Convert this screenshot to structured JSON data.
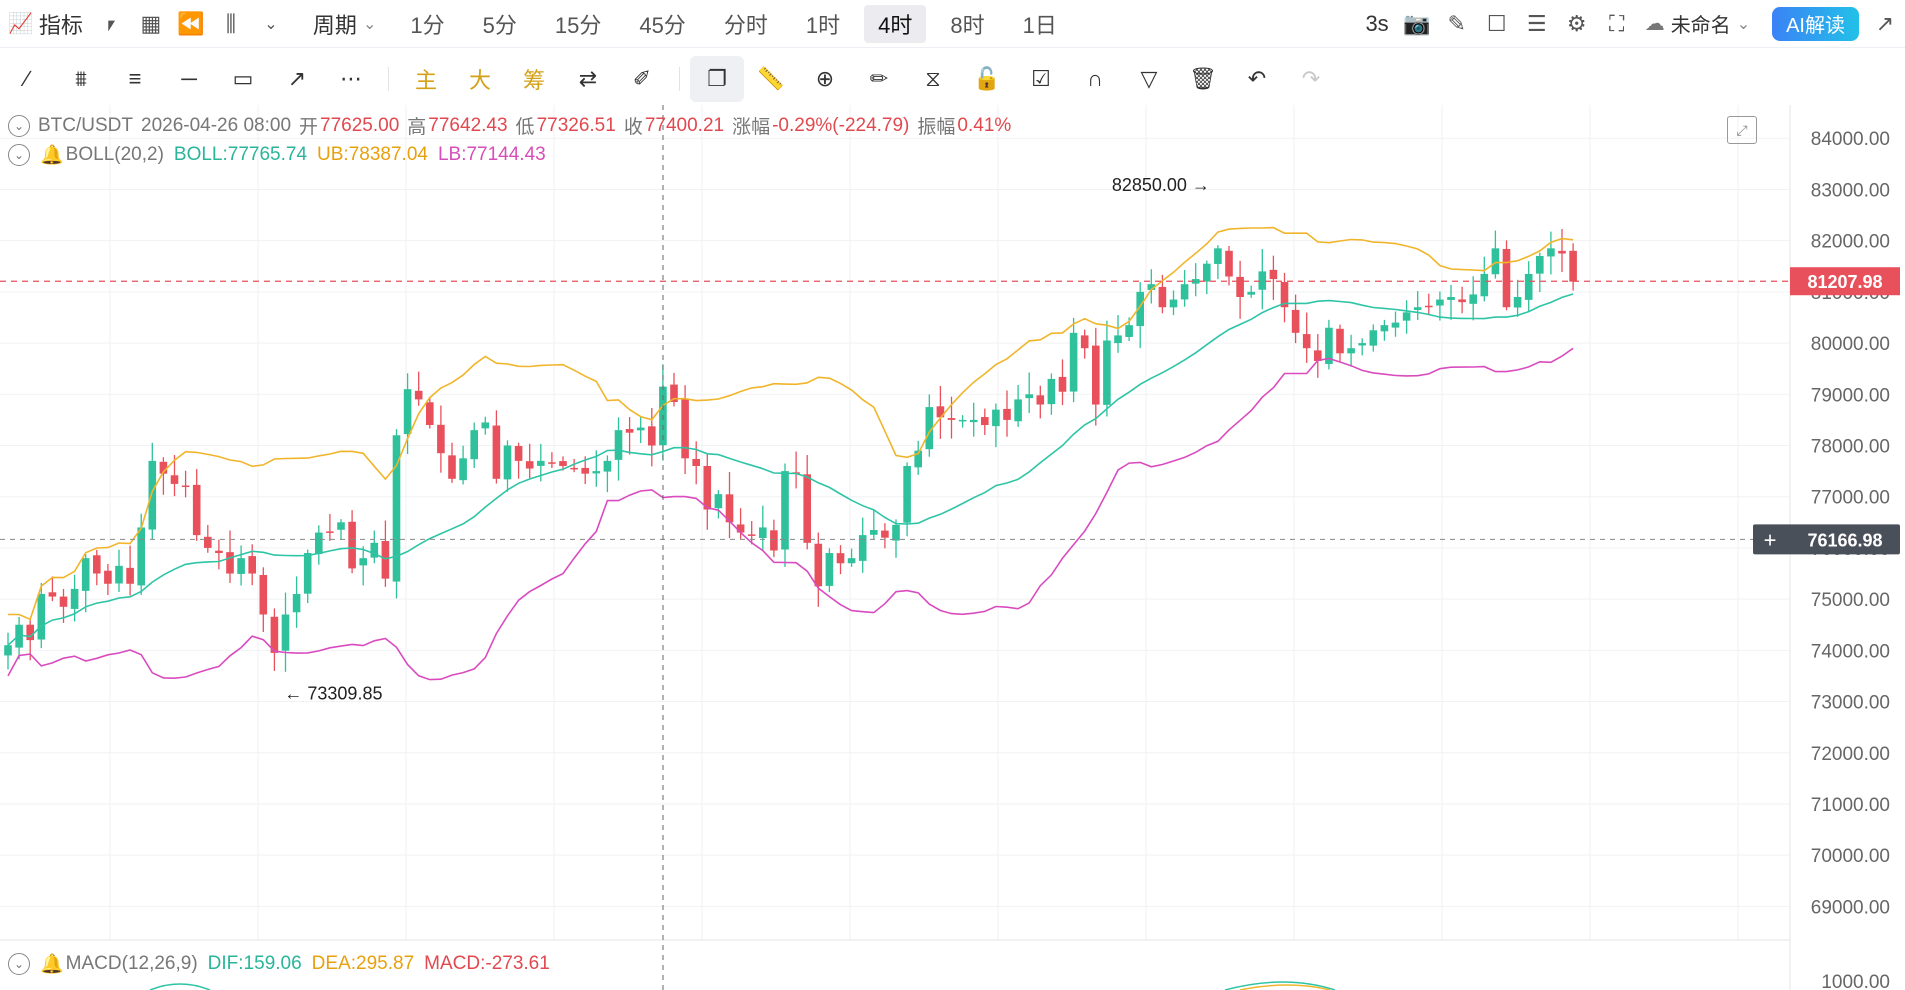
{
  "topbar": {
    "indicator_label": "指标",
    "period_menu": "周期",
    "periods": [
      "1分",
      "5分",
      "15分",
      "45分",
      "分时",
      "1时",
      "4时",
      "8时",
      "1日"
    ],
    "active_period": "4时",
    "refresh": "3s",
    "layout_name": "未命名",
    "ai_button": "AI解读"
  },
  "toolbar": {
    "main_label": "主",
    "big_label": "大",
    "chip_label": "筹"
  },
  "legend": {
    "symbol": "BTC/USDT",
    "datetime": "2026-04-26 08:00",
    "open_label": "开",
    "open": "77625.00",
    "high_label": "高",
    "high": "77642.43",
    "low_label": "低",
    "low": "77326.51",
    "close_label": "收",
    "close": "77400.21",
    "chg_label": "涨幅",
    "chg": "-0.29%(-224.79)",
    "amp_label": "振幅",
    "amp": "0.41%",
    "boll_name": "BOLL(20,2)",
    "boll": "BOLL:77765.74",
    "ub": "UB:78387.04",
    "lb": "LB:77144.43",
    "macd_name": "MACD(12,26,9)",
    "dif": "DIF:159.06",
    "dea": "DEA:295.87",
    "macd": "MACD:-273.61"
  },
  "chart_data": {
    "type": "candlestick",
    "y_axis": {
      "ticks": [
        "84000.00",
        "83000.00",
        "82000.00",
        "81000.00",
        "80000.00",
        "79000.00",
        "78000.00",
        "77000.00",
        "76000.00",
        "75000.00",
        "74000.00",
        "73000.00",
        "72000.00",
        "71000.00",
        "70000.00",
        "69000.00"
      ],
      "range": [
        68500,
        84200
      ]
    },
    "macd_axis_tick": "1000.00",
    "last_price": "81207.98",
    "crosshair_price": "76166.98",
    "annotations": {
      "high_mark": "82850.00",
      "low_mark": "73309.85"
    },
    "colors": {
      "up": "#2ec19b",
      "down": "#e8505b",
      "boll": "#2ec4a6",
      "ub": "#f0b52b",
      "lb": "#d94bbf"
    },
    "closes": [
      74100,
      74500,
      74200,
      75100,
      75050,
      74850,
      75200,
      75800,
      75500,
      75300,
      75650,
      75300,
      76400,
      77700,
      77450,
      77250,
      77200,
      76250,
      76000,
      75900,
      75500,
      75800,
      75500,
      74700,
      73950,
      74700,
      75100,
      75900,
      76300,
      76300,
      76500,
      75600,
      75800,
      76100,
      75400,
      78200,
      79100,
      78900,
      78400,
      77850,
      77350,
      77750,
      78300,
      78450,
      77350,
      78000,
      77700,
      77550,
      77700,
      77650,
      77600,
      77550,
      77450,
      77500,
      77700,
      78300,
      78250,
      78350,
      78000,
      79150,
      78850,
      77750,
      77600,
      76750,
      77050,
      76500,
      76300,
      76250,
      76400,
      75950,
      77500,
      77450,
      76100,
      75250,
      75900,
      75700,
      75800,
      76250,
      76350,
      76200,
      76450,
      77600,
      77900,
      78750,
      78550,
      78500,
      78500,
      78500,
      78400,
      78700,
      78500,
      78900,
      79000,
      78800,
      79300,
      79050,
      80200,
      79900,
      78800,
      80050,
      80150,
      80350,
      81000,
      81150,
      80700,
      80850,
      81150,
      81250,
      81550,
      81850,
      81300,
      80900,
      81000,
      81400,
      81250,
      80700,
      80200,
      79900,
      79650,
      80300,
      79800,
      79900,
      80000,
      80250,
      80350,
      80400,
      80600,
      80700,
      80700,
      80850,
      80900,
      80800,
      80950,
      81350,
      81850,
      80700,
      80900,
      81350,
      81700,
      81850,
      81750,
      81200
    ]
  }
}
